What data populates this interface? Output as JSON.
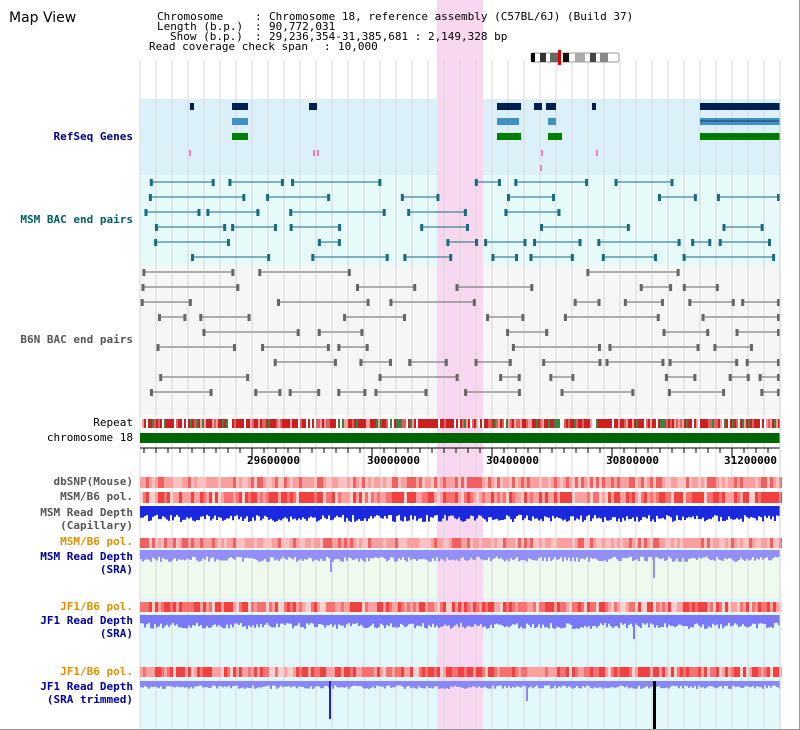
{
  "view_title": "Map View",
  "info": {
    "chromosome_key": "Chromosome",
    "chromosome_val": "Chromosome 18, reference assembly (C57BL/6J) (Build 37)",
    "length_key": "Length (b.p.)",
    "length_val": "90,772,031",
    "show_key": "Show (b.p.)",
    "show_val": "29,236,354-31,385,681 : 2,149,328 bp",
    "coverage_key": "Read coverage check span",
    "coverage_val": "10,000"
  },
  "tracks": {
    "refseq": "RefSeq Genes",
    "msm_bac": "MSM BAC end pairs",
    "b6n_bac": "B6N BAC end pairs",
    "repeat": "Repeat",
    "chromosome": "chromosome 18",
    "dbsnp": "dbSNP(Mouse)",
    "msm_b6_pol_1": "MSM/B6 pol.",
    "msm_depth_cap_1": "MSM Read Depth",
    "msm_depth_cap_2": "(Capillary)",
    "msm_b6_pol_2": "MSM/B6 pol.",
    "msm_depth_sra_1": "MSM Read Depth",
    "msm_depth_sra_2": "(SRA)",
    "jf1_b6_pol_1": "JF1/B6 pol.",
    "jf1_depth_sra_1": "JF1 Read Depth",
    "jf1_depth_sra_2": "(SRA)",
    "jf1_b6_pol_2": "JF1/B6 pol.",
    "jf1_depth_trim_1": "JF1 Read Depth",
    "jf1_depth_trim_2": "(SRA trimmed)"
  },
  "axis_ticks": [
    "29600000",
    "30000000",
    "30400000",
    "30800000",
    "31200000"
  ],
  "colors": {
    "refseq_label": "#000080",
    "msm_label": "#006060",
    "b6n_label": "#444444",
    "pol_label": "#e09000",
    "depth_label": "#0000a0",
    "highlight": "#f8d8f0"
  }
}
